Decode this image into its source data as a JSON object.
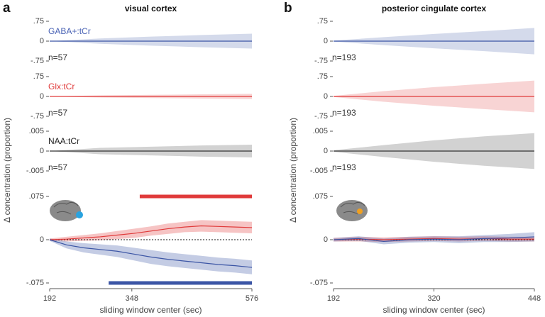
{
  "chart_data": [
    {
      "type": "band",
      "panel_label": "a",
      "title": "visual cortex",
      "ylabel": "Δ concentration (proportion)",
      "text": "GABA+:tCr",
      "text_color": "#4a63b5",
      "n_label": "n=57",
      "x": [
        192,
        288,
        384,
        480,
        576
      ],
      "xlim": [
        192,
        576
      ],
      "ylim": [
        -0.75,
        0.75
      ],
      "yticks": [
        {
          "value": 0.75,
          "label": ".75"
        },
        0,
        {
          "value": -0.75,
          "label": "-.75"
        }
      ],
      "series": [
        {
          "color": "#3b55a5",
          "values": [
            0,
            0,
            0,
            0,
            0
          ],
          "errors": [
            0,
            0.1,
            0.17,
            0.23,
            0.28
          ]
        }
      ]
    },
    {
      "type": "band",
      "text": "Glx:tCr",
      "text_color": "#e03a3a",
      "n_label": "n=57",
      "x": [
        192,
        288,
        384,
        480,
        576
      ],
      "xlim": [
        192,
        576
      ],
      "ylim": [
        -0.75,
        0.75
      ],
      "yticks": [
        {
          "value": 0.75,
          "label": ".75"
        },
        0,
        {
          "value": -0.75,
          "label": "-.75"
        }
      ],
      "series": [
        {
          "color": "#e03a3a",
          "values": [
            0,
            0,
            0,
            0,
            0
          ],
          "errors": [
            0,
            0.04,
            0.06,
            0.08,
            0.1
          ]
        }
      ]
    },
    {
      "type": "band",
      "text": "NAA:tCr",
      "text_color": "#222222",
      "n_label": "n=57",
      "x": [
        192,
        288,
        384,
        480,
        576
      ],
      "xlim": [
        192,
        576
      ],
      "ylim": [
        -0.005,
        0.005
      ],
      "yticks": [
        {
          "value": 0.005,
          "label": ".005"
        },
        0,
        {
          "value": -0.005,
          "label": "-.005"
        }
      ],
      "series": [
        {
          "color": "#333333",
          "values": [
            0,
            0,
            0,
            0,
            0
          ],
          "errors": [
            0,
            0.0008,
            0.0011,
            0.0014,
            0.0016
          ]
        }
      ]
    },
    {
      "type": "line",
      "xlabel": "sliding window center (sec)",
      "x": [
        192,
        224,
        256,
        288,
        320,
        352,
        384,
        416,
        448,
        480,
        512,
        544,
        576
      ],
      "xlim": [
        192,
        576
      ],
      "xticks": [
        192,
        348,
        576
      ],
      "ylim": [
        -0.075,
        0.075
      ],
      "yticks": [
        {
          "value": 0.075,
          "label": ".075"
        },
        0,
        {
          "value": -0.075,
          "label": "-.075"
        }
      ],
      "series": [
        {
          "color": "#e03a3a",
          "values": [
            0,
            0.001,
            0.003,
            0.005,
            0.008,
            0.011,
            0.015,
            0.019,
            0.022,
            0.024,
            0.023,
            0.022,
            0.021
          ],
          "errors": [
            0.002,
            0.004,
            0.005,
            0.006,
            0.007,
            0.008,
            0.008,
            0.009,
            0.009,
            0.01,
            0.01,
            0.01,
            0.01
          ]
        },
        {
          "color": "#3b55a5",
          "values": [
            0,
            -0.009,
            -0.014,
            -0.017,
            -0.02,
            -0.025,
            -0.03,
            -0.034,
            -0.037,
            -0.04,
            -0.043,
            -0.045,
            -0.048
          ],
          "errors": [
            0.002,
            0.006,
            0.008,
            0.009,
            0.01,
            0.011,
            0.012,
            0.012,
            0.012,
            0.012,
            0.012,
            0.012,
            0.012
          ]
        }
      ],
      "sig_bars": [
        {
          "color": "#e03a3a",
          "x": [
            363,
            576
          ],
          "y": 0.075
        },
        {
          "color": "#3b55a5",
          "x": [
            304,
            576
          ],
          "y": -0.075
        }
      ]
    },
    {
      "type": "band",
      "panel_label": "b",
      "title": "posterior cingulate cortex",
      "ylabel": "Δ concentration (proportion)",
      "n_label": "n=193",
      "x": [
        192,
        256,
        320,
        384,
        448
      ],
      "xlim": [
        192,
        448
      ],
      "ylim": [
        -0.75,
        0.75
      ],
      "yticks": [
        {
          "value": 0.75,
          "label": ".75"
        },
        0,
        {
          "value": -0.75,
          "label": "-.75"
        }
      ],
      "series": [
        {
          "color": "#3b55a5",
          "values": [
            0,
            0,
            0,
            0,
            0
          ],
          "errors": [
            0.02,
            0.15,
            0.27,
            0.38,
            0.5
          ]
        }
      ]
    },
    {
      "type": "band",
      "n_label": "n=193",
      "x": [
        192,
        256,
        320,
        384,
        448
      ],
      "xlim": [
        192,
        448
      ],
      "ylim": [
        -0.75,
        0.75
      ],
      "yticks": [
        {
          "value": 0.75,
          "label": ".75"
        },
        0,
        {
          "value": -0.75,
          "label": "-.75"
        }
      ],
      "series": [
        {
          "color": "#e03a3a",
          "values": [
            0,
            0,
            0,
            0,
            0
          ],
          "errors": [
            0.02,
            0.2,
            0.35,
            0.48,
            0.6
          ]
        }
      ]
    },
    {
      "type": "band",
      "n_label": "n=193",
      "x": [
        192,
        256,
        320,
        384,
        448
      ],
      "xlim": [
        192,
        448
      ],
      "ylim": [
        -0.005,
        0.005
      ],
      "yticks": [
        {
          "value": 0.005,
          "label": ".005"
        },
        0,
        {
          "value": -0.005,
          "label": "-.005"
        }
      ],
      "series": [
        {
          "color": "#333333",
          "values": [
            0,
            0,
            0,
            0,
            0
          ],
          "errors": [
            0.0002,
            0.0015,
            0.0027,
            0.0037,
            0.0045
          ]
        }
      ]
    },
    {
      "type": "line",
      "xlabel": "sliding window center (sec)",
      "x": [
        192,
        224,
        256,
        288,
        320,
        352,
        384,
        416,
        448
      ],
      "xlim": [
        192,
        448
      ],
      "xticks": [
        192,
        320,
        448
      ],
      "ylim": [
        -0.075,
        0.075
      ],
      "yticks": [
        {
          "value": 0.075,
          "label": ".075"
        },
        0,
        {
          "value": -0.075,
          "label": "-.075"
        }
      ],
      "series": [
        {
          "color": "#e03a3a",
          "values": [
            0,
            0.001,
            0,
            0.001,
            0.002,
            0.001,
            0.002,
            0.001,
            0.001
          ],
          "errors": [
            0.003,
            0.004,
            0.004,
            0.004,
            0.004,
            0.004,
            0.004,
            0.004,
            0.004
          ]
        },
        {
          "color": "#3b55a5",
          "values": [
            0,
            0.002,
            -0.003,
            0,
            0.001,
            0,
            0.002,
            0.003,
            0.005
          ],
          "errors": [
            0.003,
            0.004,
            0.005,
            0.005,
            0.005,
            0.006,
            0.006,
            0.007,
            0.008
          ]
        }
      ]
    }
  ]
}
